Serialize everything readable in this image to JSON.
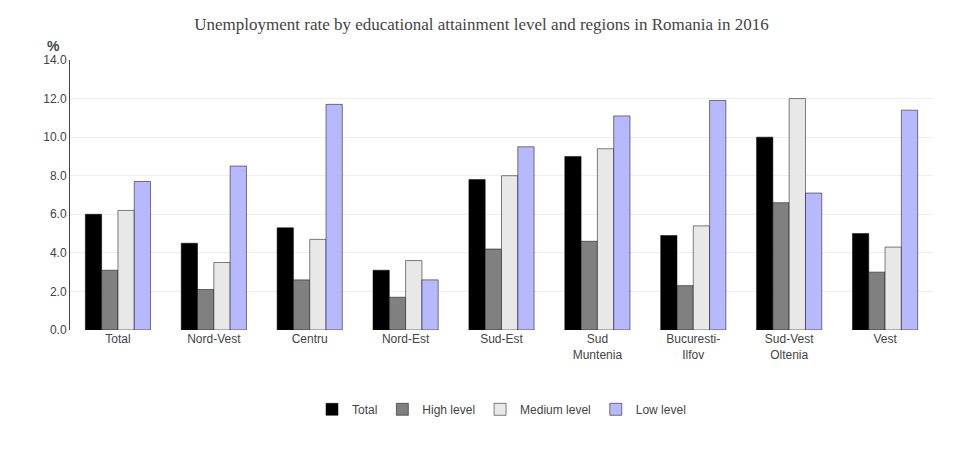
{
  "chart_data": {
    "type": "bar",
    "title": "Unemployment rate by educational attainment level and regions in Romania in 2016",
    "ylabel": "%",
    "categories": [
      "Total",
      "Nord-Vest",
      "Centru",
      "Nord-Est",
      "Sud-Est",
      "Sud\nMuntenia",
      "Bucuresti-\nIlfov",
      "Sud-Vest\nOltenia",
      "Vest"
    ],
    "series": [
      {
        "name": "Total",
        "color": "#000000",
        "values": [
          6.0,
          4.5,
          5.3,
          3.1,
          7.8,
          9.0,
          4.9,
          10.0,
          5.0
        ]
      },
      {
        "name": "High level",
        "color": "#808080",
        "values": [
          3.1,
          2.1,
          2.6,
          1.7,
          4.2,
          4.6,
          2.3,
          6.6,
          3.0
        ]
      },
      {
        "name": "Medium level",
        "color": "#e8e8e8",
        "values": [
          6.2,
          3.5,
          4.7,
          3.6,
          8.0,
          9.4,
          5.4,
          12.0,
          4.3
        ]
      },
      {
        "name": "Low level",
        "color": "#b8b8ff",
        "values": [
          7.7,
          8.5,
          11.7,
          2.6,
          9.5,
          11.1,
          11.9,
          7.1,
          11.4
        ]
      }
    ],
    "ylim": [
      0,
      14.0
    ],
    "yticks": [
      {
        "value": 0.0,
        "label": "0.0"
      },
      {
        "value": 2.0,
        "label": "2.0"
      },
      {
        "value": 4.0,
        "label": "4.0"
      },
      {
        "value": 6.0,
        "label": "6.0"
      },
      {
        "value": 8.0,
        "label": "8.0"
      },
      {
        "value": 10.0,
        "label": "10.0"
      },
      {
        "value": 12.0,
        "label": "12.0"
      },
      {
        "value": 14.0,
        "label": "14.0"
      }
    ],
    "grid": true,
    "legend": "bottom"
  }
}
